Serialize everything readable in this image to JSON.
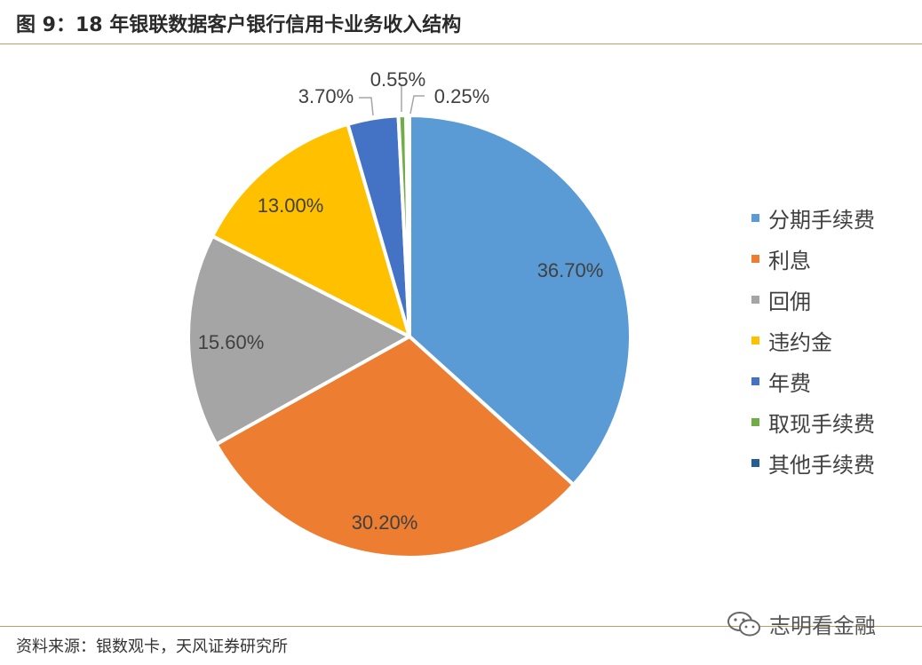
{
  "title": "图 9：18 年银联数据客户银行信用卡业务收入结构",
  "source": "资料来源：银数观卡，天风证券研究所",
  "watermark": "志明看金融",
  "chart_data": {
    "type": "pie",
    "title": "",
    "categories": [
      "分期手续费",
      "利息",
      "回佣",
      "违约金",
      "年费",
      "取现手续费",
      "其他手续费"
    ],
    "values": [
      36.7,
      30.2,
      15.6,
      13.0,
      3.7,
      0.55,
      0.25
    ],
    "labels": [
      "36.70%",
      "30.20%",
      "15.60%",
      "13.00%",
      "3.70%",
      "0.55%",
      "0.25%"
    ],
    "colors": [
      "#5B9BD5",
      "#ED7D31",
      "#A5A5A5",
      "#FFC000",
      "#4472C4",
      "#70AD47",
      "#255E91"
    ],
    "legend_position": "right",
    "start_angle_deg": 0,
    "direction": "clockwise"
  }
}
